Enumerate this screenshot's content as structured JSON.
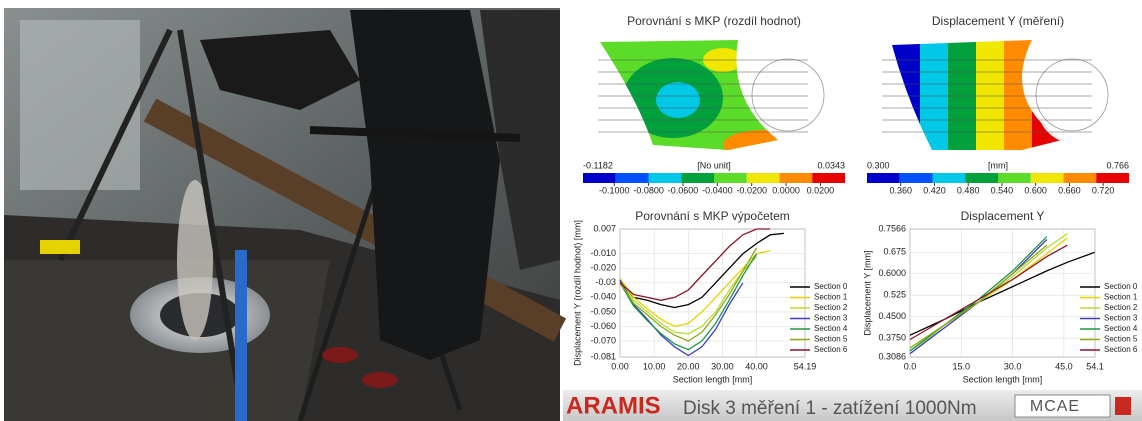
{
  "contour_maps": [
    {
      "title": "Porovnání s MKP (rozdíl hodnot)",
      "min": -0.1182,
      "max": 0.0343,
      "unit": "[No unit]",
      "ticks": [
        {
          "value": -0.1,
          "label": "-0.1000"
        },
        {
          "value": -0.08,
          "label": "-0.0800"
        },
        {
          "value": -0.06,
          "label": "-0.0600"
        },
        {
          "value": -0.04,
          "label": "-0.0400"
        },
        {
          "value": -0.02,
          "label": "-0.0200"
        },
        {
          "value": 0,
          "label": "0.0000"
        },
        {
          "value": 0.02,
          "label": "0.0200"
        }
      ],
      "colors": [
        "#0000c8",
        "#0050ff",
        "#00c8e6",
        "#00a03c",
        "#5adc28",
        "#f0e600",
        "#ff8c00",
        "#e60000"
      ]
    },
    {
      "title": "Displacement Y (měření)",
      "min": {
        "value": 0.3,
        "label": "0.300"
      },
      "max": 0.766,
      "unit": "[mm]",
      "ticks": [
        {
          "value": 0.36,
          "label": "0.360"
        },
        {
          "value": 0.42,
          "label": "0.420"
        },
        {
          "value": 0.48,
          "label": "0.480"
        },
        {
          "value": 0.54,
          "label": "0.540"
        },
        {
          "value": 0.6,
          "label": "0.600"
        },
        {
          "value": 0.66,
          "label": "0.660"
        },
        {
          "value": 0.72,
          "label": "0.720"
        }
      ],
      "colors": [
        "#0000c8",
        "#0050ff",
        "#00c8e6",
        "#00a03c",
        "#5adc28",
        "#f0e600",
        "#ff8c00",
        "#e60000"
      ]
    }
  ],
  "chart_data": [
    {
      "type": "line",
      "title": "Porovnání s MKP výpočetem",
      "x_label": "Section length [mm]",
      "y_label": "Displacement Y (rozdíl hodnot) [mm]",
      "x": [
        0,
        4,
        8,
        12,
        16,
        20,
        24,
        28,
        32,
        36,
        40,
        44,
        48
      ],
      "xlim": [
        0,
        54.19
      ],
      "xticks": [
        {
          "value": 0,
          "label": "0.00"
        },
        {
          "value": 10,
          "label": "10.00"
        },
        {
          "value": 20,
          "label": "20.00"
        },
        {
          "value": 30,
          "label": "30.00"
        },
        {
          "value": 40,
          "label": "40.00"
        },
        54.19
      ],
      "ylim": [
        -0.081,
        0.007
      ],
      "yticks": [
        0.007,
        {
          "value": -0.01,
          "label": "-0.010"
        },
        {
          "value": -0.02,
          "label": "-0.020"
        },
        -0.03,
        {
          "value": -0.04,
          "label": "-0.040"
        },
        {
          "value": -0.05,
          "label": "-0.050"
        },
        {
          "value": -0.06,
          "label": "-0.060"
        },
        {
          "value": -0.07,
          "label": "-0.070"
        },
        -0.081
      ],
      "series": [
        {
          "name": "Section 0",
          "color": "#000000",
          "values": [
            -0.03,
            -0.04,
            -0.042,
            -0.045,
            -0.047,
            -0.045,
            -0.04,
            -0.03,
            -0.02,
            -0.01,
            -0.003,
            0.003,
            0.004
          ]
        },
        {
          "name": "Section 1",
          "color": "#e6d200",
          "values": [
            -0.027,
            -0.04,
            -0.048,
            -0.055,
            -0.06,
            -0.058,
            -0.05,
            -0.04,
            -0.03,
            -0.02,
            -0.01,
            -0.008,
            null
          ]
        },
        {
          "name": "Section 2",
          "color": "#b4dc3c",
          "values": [
            -0.028,
            -0.042,
            -0.05,
            -0.058,
            -0.064,
            -0.065,
            -0.06,
            -0.05,
            -0.035,
            -0.022,
            -0.012,
            null,
            null
          ]
        },
        {
          "name": "Section 3",
          "color": "#3c3cc8",
          "values": [
            -0.028,
            -0.045,
            -0.055,
            -0.066,
            -0.074,
            -0.08,
            -0.074,
            -0.062,
            -0.045,
            -0.03,
            null,
            null,
            null
          ]
        },
        {
          "name": "Section 4",
          "color": "#1e9646",
          "values": [
            -0.03,
            -0.046,
            -0.056,
            -0.065,
            -0.072,
            -0.076,
            -0.07,
            -0.058,
            -0.042,
            -0.025,
            -0.01,
            null,
            null
          ]
        },
        {
          "name": "Section 5",
          "color": "#8caa14",
          "values": [
            -0.03,
            -0.044,
            -0.052,
            -0.06,
            -0.066,
            -0.07,
            -0.064,
            -0.052,
            -0.038,
            -0.022,
            -0.006,
            null,
            null
          ]
        },
        {
          "name": "Section 6",
          "color": "#8c1428",
          "values": [
            -0.03,
            -0.038,
            -0.04,
            -0.042,
            -0.04,
            -0.035,
            -0.025,
            -0.015,
            -0.005,
            0.003,
            0.007,
            0.007,
            null
          ]
        }
      ]
    },
    {
      "type": "line",
      "title": "Displacement Y",
      "x_label": "Section length [mm]",
      "y_label": "Displacement Y [mm]",
      "x": [
        0,
        10,
        20,
        30,
        40,
        46,
        54
      ],
      "xlim": [
        0,
        54.1
      ],
      "xticks": [
        {
          "value": 0,
          "label": "0.0"
        },
        {
          "value": 15,
          "label": "15.0"
        },
        {
          "value": 30,
          "label": "30.0"
        },
        {
          "value": 45,
          "label": "45.0"
        },
        54.1
      ],
      "ylim": [
        0.3086,
        0.7566
      ],
      "yticks": [
        0.3086,
        {
          "value": 0.375,
          "label": "0.3750"
        },
        {
          "value": 0.45,
          "label": "0.4500"
        },
        0.525,
        {
          "value": 0.6,
          "label": "0.6000"
        },
        0.675,
        0.7566
      ],
      "series": [
        {
          "name": "Section 0",
          "color": "#000000",
          "values": [
            0.385,
            0.44,
            0.5,
            0.555,
            0.61,
            0.64,
            0.675
          ]
        },
        {
          "name": "Section 1",
          "color": "#e6d200",
          "values": [
            0.34,
            0.42,
            0.5,
            0.58,
            0.67,
            0.725,
            null
          ]
        },
        {
          "name": "Section 2",
          "color": "#b4dc3c",
          "values": [
            0.33,
            0.41,
            0.5,
            0.59,
            0.69,
            0.74,
            null
          ]
        },
        {
          "name": "Section 3",
          "color": "#3c3cc8",
          "values": [
            0.32,
            0.41,
            0.5,
            0.6,
            0.72,
            null,
            null
          ]
        },
        {
          "name": "Section 4",
          "color": "#1e9646",
          "values": [
            0.33,
            0.42,
            0.51,
            0.61,
            0.73,
            null,
            null
          ]
        },
        {
          "name": "Section 5",
          "color": "#8caa14",
          "values": [
            0.34,
            0.42,
            0.5,
            0.6,
            0.7,
            null,
            null
          ]
        },
        {
          "name": "Section 6",
          "color": "#8c1428",
          "values": [
            0.37,
            0.44,
            0.51,
            0.58,
            0.66,
            0.7,
            null
          ]
        }
      ]
    }
  ],
  "footer": {
    "brand": "ARAMIS",
    "caption": "Disk 3 měření 1 - zatížení 1000Nm",
    "logo": "MCAE"
  }
}
